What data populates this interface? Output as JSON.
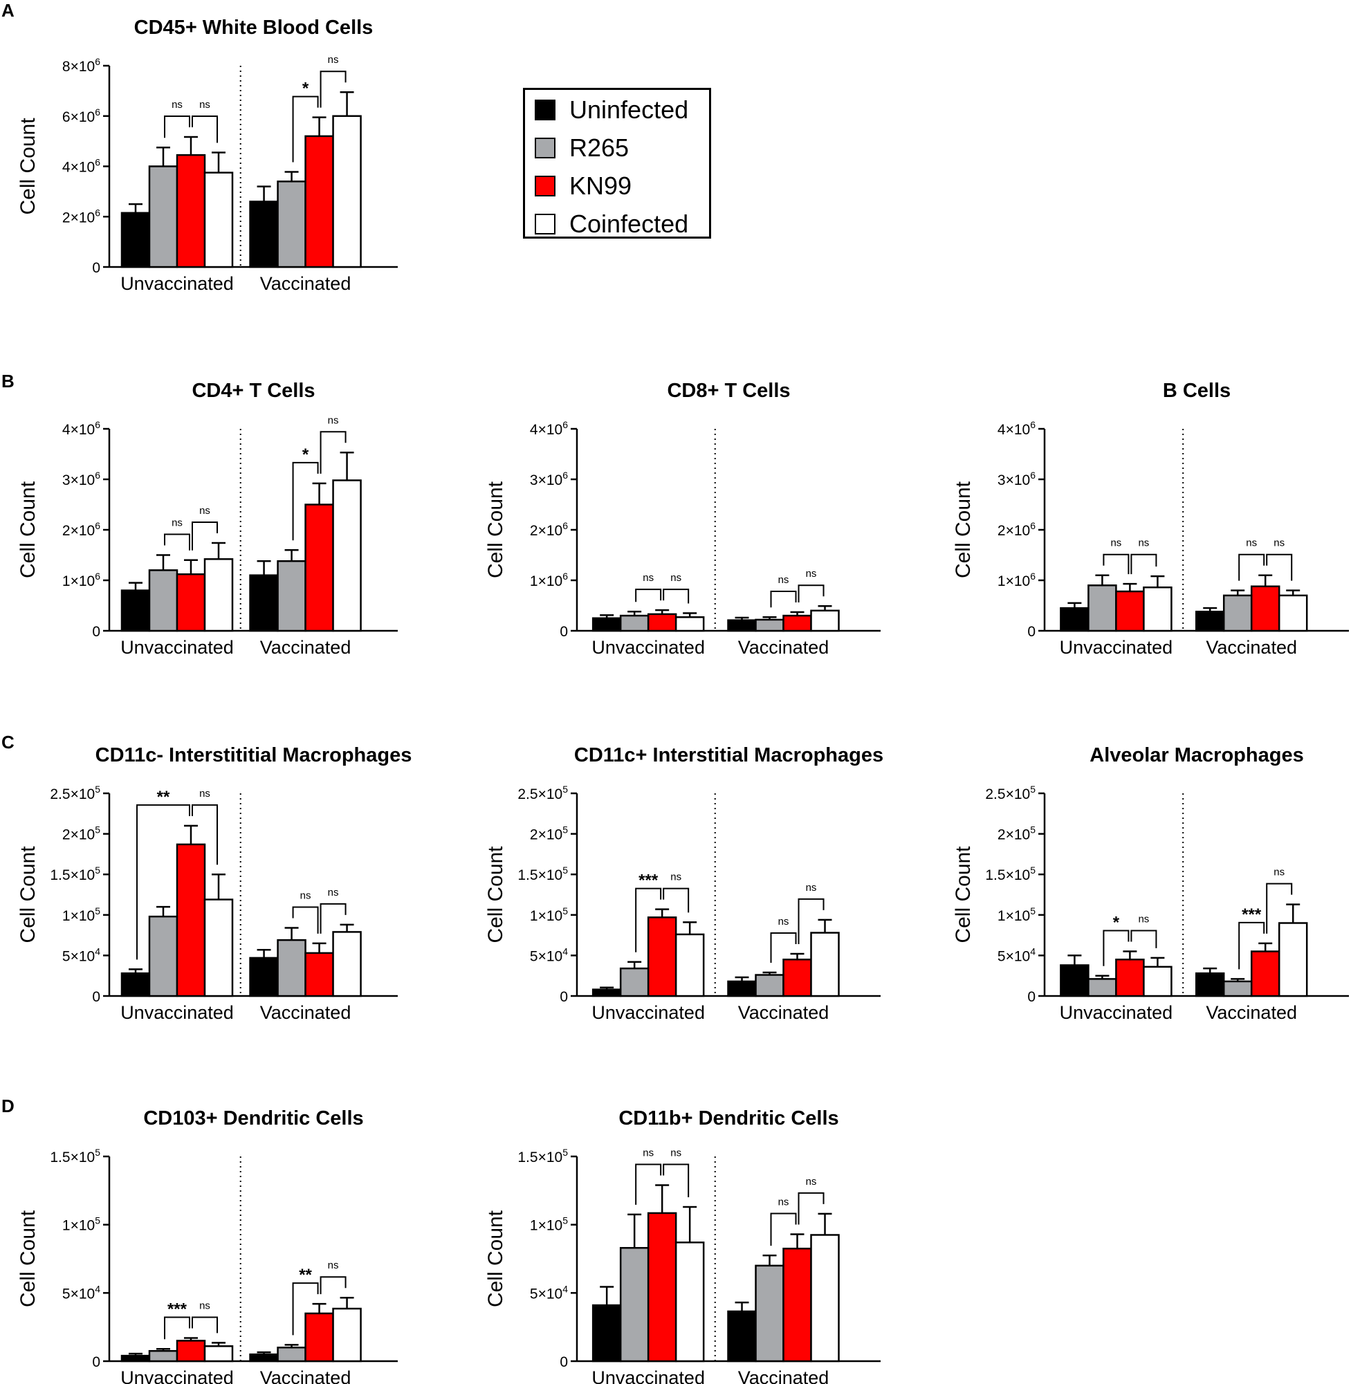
{
  "legend": {
    "items": [
      {
        "label": "Uninfected",
        "color": "#000000"
      },
      {
        "label": "R265",
        "color": "#a7a9ac"
      },
      {
        "label": "KN99",
        "color": "#ff0000"
      },
      {
        "label": "Coinfected",
        "color": "#ffffff"
      }
    ]
  },
  "panel_letters": [
    "A",
    "B",
    "C",
    "D"
  ],
  "chart_data": [
    {
      "type": "bar",
      "panel": "A",
      "title": "CD45+ White Blood Cells",
      "ylabel": "Cell Count",
      "ylim": [
        0,
        8000000
      ],
      "yticks": [
        {
          "v": 0,
          "m": "0",
          "e": ""
        },
        {
          "v": 2000000,
          "m": "2×10",
          "e": "6"
        },
        {
          "v": 4000000,
          "m": "4×10",
          "e": "6"
        },
        {
          "v": 6000000,
          "m": "6×10",
          "e": "6"
        },
        {
          "v": 8000000,
          "m": "8×10",
          "e": "6"
        }
      ],
      "categories": [
        "Unvaccinated",
        "Vaccinated"
      ],
      "series": [
        {
          "name": "Uninfected",
          "values": [
            2150000,
            2600000
          ],
          "errors": [
            350000,
            600000
          ]
        },
        {
          "name": "R265",
          "values": [
            4000000,
            3400000
          ],
          "errors": [
            750000,
            380000
          ]
        },
        {
          "name": "KN99",
          "values": [
            4450000,
            5200000
          ],
          "errors": [
            720000,
            750000
          ]
        },
        {
          "name": "Coinfected",
          "values": [
            3750000,
            6000000
          ],
          "errors": [
            800000,
            950000
          ]
        }
      ],
      "annotations": [
        {
          "group": 0,
          "from": 1,
          "to": 2,
          "text": "ns"
        },
        {
          "group": 0,
          "from": 2,
          "to": 3,
          "text": "ns"
        },
        {
          "group": 1,
          "from": 1,
          "to": 2,
          "text": "*"
        },
        {
          "group": 1,
          "from": 2,
          "to": 3,
          "text": "ns"
        }
      ]
    },
    {
      "type": "bar",
      "panel": "B",
      "title": "CD4+ T Cells",
      "ylabel": "Cell Count",
      "ylim": [
        0,
        4000000
      ],
      "yticks": [
        {
          "v": 0,
          "m": "0",
          "e": ""
        },
        {
          "v": 1000000,
          "m": "1×10",
          "e": "6"
        },
        {
          "v": 2000000,
          "m": "2×10",
          "e": "6"
        },
        {
          "v": 3000000,
          "m": "3×10",
          "e": "6"
        },
        {
          "v": 4000000,
          "m": "4×10",
          "e": "6"
        }
      ],
      "categories": [
        "Unvaccinated",
        "Vaccinated"
      ],
      "series": [
        {
          "name": "Uninfected",
          "values": [
            800000,
            1100000
          ],
          "errors": [
            150000,
            280000
          ]
        },
        {
          "name": "R265",
          "values": [
            1200000,
            1380000
          ],
          "errors": [
            300000,
            220000
          ]
        },
        {
          "name": "KN99",
          "values": [
            1120000,
            2500000
          ],
          "errors": [
            280000,
            420000
          ]
        },
        {
          "name": "Coinfected",
          "values": [
            1420000,
            2980000
          ],
          "errors": [
            320000,
            550000
          ]
        }
      ],
      "annotations": [
        {
          "group": 0,
          "from": 1,
          "to": 2,
          "text": "ns"
        },
        {
          "group": 0,
          "from": 2,
          "to": 3,
          "text": "ns"
        },
        {
          "group": 1,
          "from": 1,
          "to": 2,
          "text": "*"
        },
        {
          "group": 1,
          "from": 2,
          "to": 3,
          "text": "ns"
        }
      ]
    },
    {
      "type": "bar",
      "panel": "B",
      "title": "CD8+ T Cells",
      "ylabel": "Cell Count",
      "ylim": [
        0,
        4000000
      ],
      "yticks": [
        {
          "v": 0,
          "m": "0",
          "e": ""
        },
        {
          "v": 1000000,
          "m": "1×10",
          "e": "6"
        },
        {
          "v": 2000000,
          "m": "2×10",
          "e": "6"
        },
        {
          "v": 3000000,
          "m": "3×10",
          "e": "6"
        },
        {
          "v": 4000000,
          "m": "4×10",
          "e": "6"
        }
      ],
      "categories": [
        "Unvaccinated",
        "Vaccinated"
      ],
      "series": [
        {
          "name": "Uninfected",
          "values": [
            250000,
            210000
          ],
          "errors": [
            60000,
            50000
          ]
        },
        {
          "name": "R265",
          "values": [
            300000,
            220000
          ],
          "errors": [
            80000,
            50000
          ]
        },
        {
          "name": "KN99",
          "values": [
            330000,
            300000
          ],
          "errors": [
            80000,
            70000
          ]
        },
        {
          "name": "Coinfected",
          "values": [
            270000,
            400000
          ],
          "errors": [
            80000,
            90000
          ]
        }
      ],
      "annotations": [
        {
          "group": 0,
          "from": 1,
          "to": 2,
          "text": "ns"
        },
        {
          "group": 0,
          "from": 2,
          "to": 3,
          "text": "ns"
        },
        {
          "group": 1,
          "from": 1,
          "to": 2,
          "text": "ns"
        },
        {
          "group": 1,
          "from": 2,
          "to": 3,
          "text": "ns"
        }
      ]
    },
    {
      "type": "bar",
      "panel": "B",
      "title": "B Cells",
      "ylabel": "Cell Count",
      "ylim": [
        0,
        4000000
      ],
      "yticks": [
        {
          "v": 0,
          "m": "0",
          "e": ""
        },
        {
          "v": 1000000,
          "m": "1×10",
          "e": "6"
        },
        {
          "v": 2000000,
          "m": "2×10",
          "e": "6"
        },
        {
          "v": 3000000,
          "m": "3×10",
          "e": "6"
        },
        {
          "v": 4000000,
          "m": "4×10",
          "e": "6"
        }
      ],
      "categories": [
        "Unvaccinated",
        "Vaccinated"
      ],
      "series": [
        {
          "name": "Uninfected",
          "values": [
            450000,
            380000
          ],
          "errors": [
            100000,
            70000
          ]
        },
        {
          "name": "R265",
          "values": [
            900000,
            700000
          ],
          "errors": [
            200000,
            100000
          ]
        },
        {
          "name": "KN99",
          "values": [
            780000,
            880000
          ],
          "errors": [
            150000,
            220000
          ]
        },
        {
          "name": "Coinfected",
          "values": [
            860000,
            700000
          ],
          "errors": [
            220000,
            100000
          ]
        }
      ],
      "annotations": [
        {
          "group": 0,
          "from": 1,
          "to": 2,
          "text": "ns"
        },
        {
          "group": 0,
          "from": 2,
          "to": 3,
          "text": "ns"
        },
        {
          "group": 1,
          "from": 1,
          "to": 2,
          "text": "ns"
        },
        {
          "group": 1,
          "from": 2,
          "to": 3,
          "text": "ns"
        }
      ]
    },
    {
      "type": "bar",
      "panel": "C",
      "title": "CD11c- Interstititial Macrophages",
      "ylabel": "Cell Count",
      "ylim": [
        0,
        250000
      ],
      "yticks": [
        {
          "v": 0,
          "m": "0",
          "e": ""
        },
        {
          "v": 50000,
          "m": "5×10",
          "e": "4"
        },
        {
          "v": 100000,
          "m": "1×10",
          "e": "5"
        },
        {
          "v": 150000,
          "m": "1.5×10",
          "e": "5"
        },
        {
          "v": 200000,
          "m": "2×10",
          "e": "5"
        },
        {
          "v": 250000,
          "m": "2.5×10",
          "e": "5"
        }
      ],
      "categories": [
        "Unvaccinated",
        "Vaccinated"
      ],
      "series": [
        {
          "name": "Uninfected",
          "values": [
            28000,
            47000
          ],
          "errors": [
            5000,
            10000
          ]
        },
        {
          "name": "R265",
          "values": [
            98000,
            69000
          ],
          "errors": [
            12000,
            15000
          ]
        },
        {
          "name": "KN99",
          "values": [
            187000,
            53000
          ],
          "errors": [
            23000,
            12000
          ]
        },
        {
          "name": "Coinfected",
          "values": [
            119000,
            79000
          ],
          "errors": [
            31000,
            9000
          ]
        }
      ],
      "annotations": [
        {
          "group": 0,
          "from": 0,
          "to": 2,
          "text": "**"
        },
        {
          "group": 0,
          "from": 2,
          "to": 3,
          "text": "ns"
        },
        {
          "group": 1,
          "from": 1,
          "to": 2,
          "text": "ns"
        },
        {
          "group": 1,
          "from": 2,
          "to": 3,
          "text": "ns"
        }
      ]
    },
    {
      "type": "bar",
      "panel": "C",
      "title": "CD11c+ Interstitial Macrophages",
      "ylabel": "Cell Count",
      "ylim": [
        0,
        250000
      ],
      "yticks": [
        {
          "v": 0,
          "m": "0",
          "e": ""
        },
        {
          "v": 50000,
          "m": "5×10",
          "e": "4"
        },
        {
          "v": 100000,
          "m": "1×10",
          "e": "5"
        },
        {
          "v": 150000,
          "m": "1.5×10",
          "e": "5"
        },
        {
          "v": 200000,
          "m": "2×10",
          "e": "5"
        },
        {
          "v": 250000,
          "m": "2.5×10",
          "e": "5"
        }
      ],
      "categories": [
        "Unvaccinated",
        "Vaccinated"
      ],
      "series": [
        {
          "name": "Uninfected",
          "values": [
            8000,
            18000
          ],
          "errors": [
            2500,
            5000
          ]
        },
        {
          "name": "R265",
          "values": [
            34000,
            26000
          ],
          "errors": [
            8000,
            3000
          ]
        },
        {
          "name": "KN99",
          "values": [
            97000,
            45000
          ],
          "errors": [
            10000,
            7000
          ]
        },
        {
          "name": "Coinfected",
          "values": [
            76000,
            78000
          ],
          "errors": [
            15000,
            16000
          ]
        }
      ],
      "annotations": [
        {
          "group": 0,
          "from": 1,
          "to": 2,
          "text": "***"
        },
        {
          "group": 0,
          "from": 2,
          "to": 3,
          "text": "ns"
        },
        {
          "group": 1,
          "from": 1,
          "to": 2,
          "text": "ns"
        },
        {
          "group": 1,
          "from": 2,
          "to": 3,
          "text": "ns"
        }
      ]
    },
    {
      "type": "bar",
      "panel": "C",
      "title": "Alveolar Macrophages",
      "ylabel": "Cell Count",
      "ylim": [
        0,
        250000
      ],
      "yticks": [
        {
          "v": 0,
          "m": "0",
          "e": ""
        },
        {
          "v": 50000,
          "m": "5×10",
          "e": "4"
        },
        {
          "v": 100000,
          "m": "1×10",
          "e": "5"
        },
        {
          "v": 150000,
          "m": "1.5×10",
          "e": "5"
        },
        {
          "v": 200000,
          "m": "2×10",
          "e": "5"
        },
        {
          "v": 250000,
          "m": "2.5×10",
          "e": "5"
        }
      ],
      "categories": [
        "Unvaccinated",
        "Vaccinated"
      ],
      "series": [
        {
          "name": "Uninfected",
          "values": [
            38000,
            28000
          ],
          "errors": [
            12000,
            6000
          ]
        },
        {
          "name": "R265",
          "values": [
            21000,
            18000
          ],
          "errors": [
            4000,
            3000
          ]
        },
        {
          "name": "KN99",
          "values": [
            45000,
            55000
          ],
          "errors": [
            10000,
            10000
          ]
        },
        {
          "name": "Coinfected",
          "values": [
            36000,
            90000
          ],
          "errors": [
            11000,
            23000
          ]
        }
      ],
      "annotations": [
        {
          "group": 0,
          "from": 1,
          "to": 2,
          "text": "*"
        },
        {
          "group": 0,
          "from": 2,
          "to": 3,
          "text": "ns"
        },
        {
          "group": 1,
          "from": 1,
          "to": 2,
          "text": "***"
        },
        {
          "group": 1,
          "from": 2,
          "to": 3,
          "text": "ns"
        }
      ]
    },
    {
      "type": "bar",
      "panel": "D",
      "title": "CD103+ Dendritic Cells",
      "ylabel": "Cell Count",
      "ylim": [
        0,
        150000
      ],
      "yticks": [
        {
          "v": 0,
          "m": "0",
          "e": ""
        },
        {
          "v": 50000,
          "m": "5×10",
          "e": "4"
        },
        {
          "v": 100000,
          "m": "1×10",
          "e": "5"
        },
        {
          "v": 150000,
          "m": "1.5×10",
          "e": "5"
        }
      ],
      "categories": [
        "Unvaccinated",
        "Vaccinated"
      ],
      "series": [
        {
          "name": "Uninfected",
          "values": [
            4000,
            5000
          ],
          "errors": [
            1500,
            1500
          ]
        },
        {
          "name": "R265",
          "values": [
            7500,
            10000
          ],
          "errors": [
            1500,
            2000
          ]
        },
        {
          "name": "KN99",
          "values": [
            15000,
            35000
          ],
          "errors": [
            2000,
            7000
          ]
        },
        {
          "name": "Coinfected",
          "values": [
            11000,
            38500
          ],
          "errors": [
            2500,
            8000
          ]
        }
      ],
      "annotations": [
        {
          "group": 0,
          "from": 1,
          "to": 2,
          "text": "***"
        },
        {
          "group": 0,
          "from": 2,
          "to": 3,
          "text": "ns"
        },
        {
          "group": 1,
          "from": 1,
          "to": 2,
          "text": "**"
        },
        {
          "group": 1,
          "from": 2,
          "to": 3,
          "text": "ns"
        }
      ]
    },
    {
      "type": "bar",
      "panel": "D",
      "title": "CD11b+ Dendritic Cells",
      "ylabel": "Cell Count",
      "ylim": [
        0,
        150000
      ],
      "yticks": [
        {
          "v": 0,
          "m": "0",
          "e": ""
        },
        {
          "v": 50000,
          "m": "5×10",
          "e": "4"
        },
        {
          "v": 100000,
          "m": "1×10",
          "e": "5"
        },
        {
          "v": 150000,
          "m": "1.5×10",
          "e": "5"
        }
      ],
      "categories": [
        "Unvaccinated",
        "Vaccinated"
      ],
      "series": [
        {
          "name": "Uninfected",
          "values": [
            41000,
            36500
          ],
          "errors": [
            13500,
            6500
          ]
        },
        {
          "name": "R265",
          "values": [
            83000,
            70000
          ],
          "errors": [
            24500,
            7500
          ]
        },
        {
          "name": "KN99",
          "values": [
            108500,
            82500
          ],
          "errors": [
            20500,
            10500
          ]
        },
        {
          "name": "Coinfected",
          "values": [
            87000,
            92500
          ],
          "errors": [
            26000,
            15500
          ]
        }
      ],
      "annotations": [
        {
          "group": 0,
          "from": 1,
          "to": 2,
          "text": "ns"
        },
        {
          "group": 0,
          "from": 2,
          "to": 3,
          "text": "ns"
        },
        {
          "group": 1,
          "from": 1,
          "to": 2,
          "text": "ns"
        },
        {
          "group": 1,
          "from": 2,
          "to": 3,
          "text": "ns"
        }
      ]
    }
  ]
}
